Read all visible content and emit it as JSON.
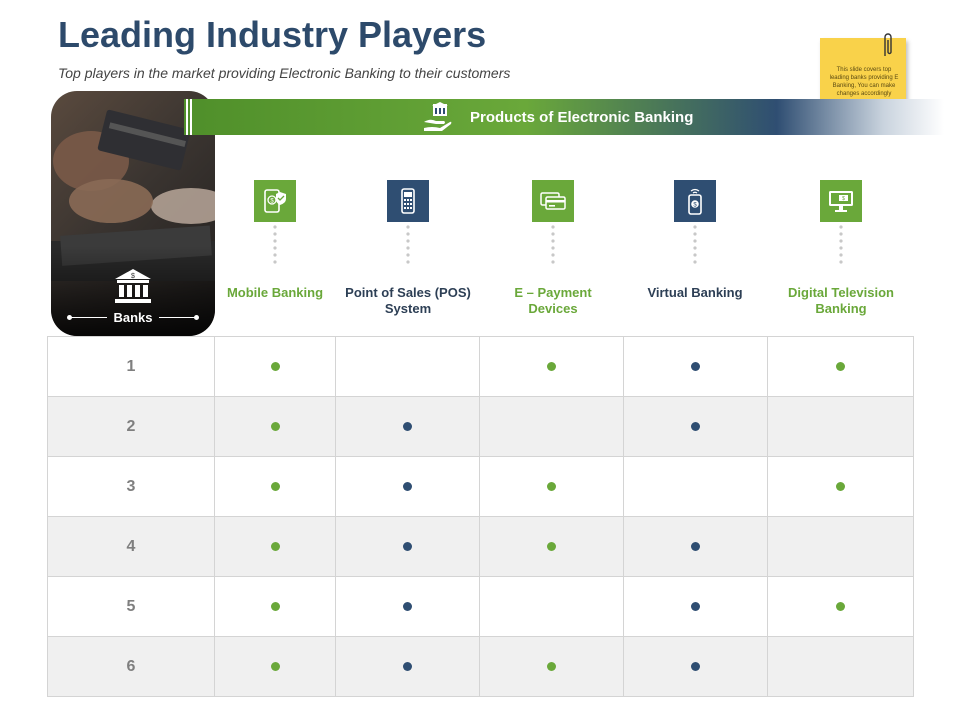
{
  "slide": {
    "title": "Leading Industry Players",
    "subtitle": "Top players in the market providing Electronic Banking to their customers"
  },
  "note": {
    "text": "This slide covers top leading banks providing E Banking, You can make changes accordingly",
    "color": "#f9d24a"
  },
  "panel": {
    "label": "Banks",
    "icon": "bank-building-icon"
  },
  "banner": {
    "label": "Products of Electronic Banking",
    "icon": "hand-bank-icon"
  },
  "colors": {
    "green": "#6aa83a",
    "blue": "#2f4e72",
    "title": "#2d4a6b"
  },
  "products": [
    {
      "label": "Mobile Banking",
      "color": "green",
      "icon": "mobile-dollar-icon"
    },
    {
      "label": "Point of Sales (POS) System",
      "color": "blue",
      "icon": "pos-terminal-icon"
    },
    {
      "label": "E – Payment Devices",
      "color": "green",
      "icon": "credit-card-icon"
    },
    {
      "label": "Virtual Banking",
      "color": "blue",
      "icon": "smartphone-dollar-icon"
    },
    {
      "label": "Digital Television Banking",
      "color": "green",
      "icon": "monitor-dollar-icon"
    }
  ],
  "rows": [
    {
      "num": "1",
      "marks": [
        true,
        false,
        true,
        true,
        true
      ]
    },
    {
      "num": "2",
      "marks": [
        true,
        true,
        false,
        true,
        false
      ]
    },
    {
      "num": "3",
      "marks": [
        true,
        true,
        true,
        false,
        true
      ]
    },
    {
      "num": "4",
      "marks": [
        true,
        true,
        true,
        true,
        false
      ]
    },
    {
      "num": "5",
      "marks": [
        true,
        true,
        false,
        true,
        true
      ]
    },
    {
      "num": "6",
      "marks": [
        true,
        true,
        true,
        true,
        false
      ]
    }
  ]
}
